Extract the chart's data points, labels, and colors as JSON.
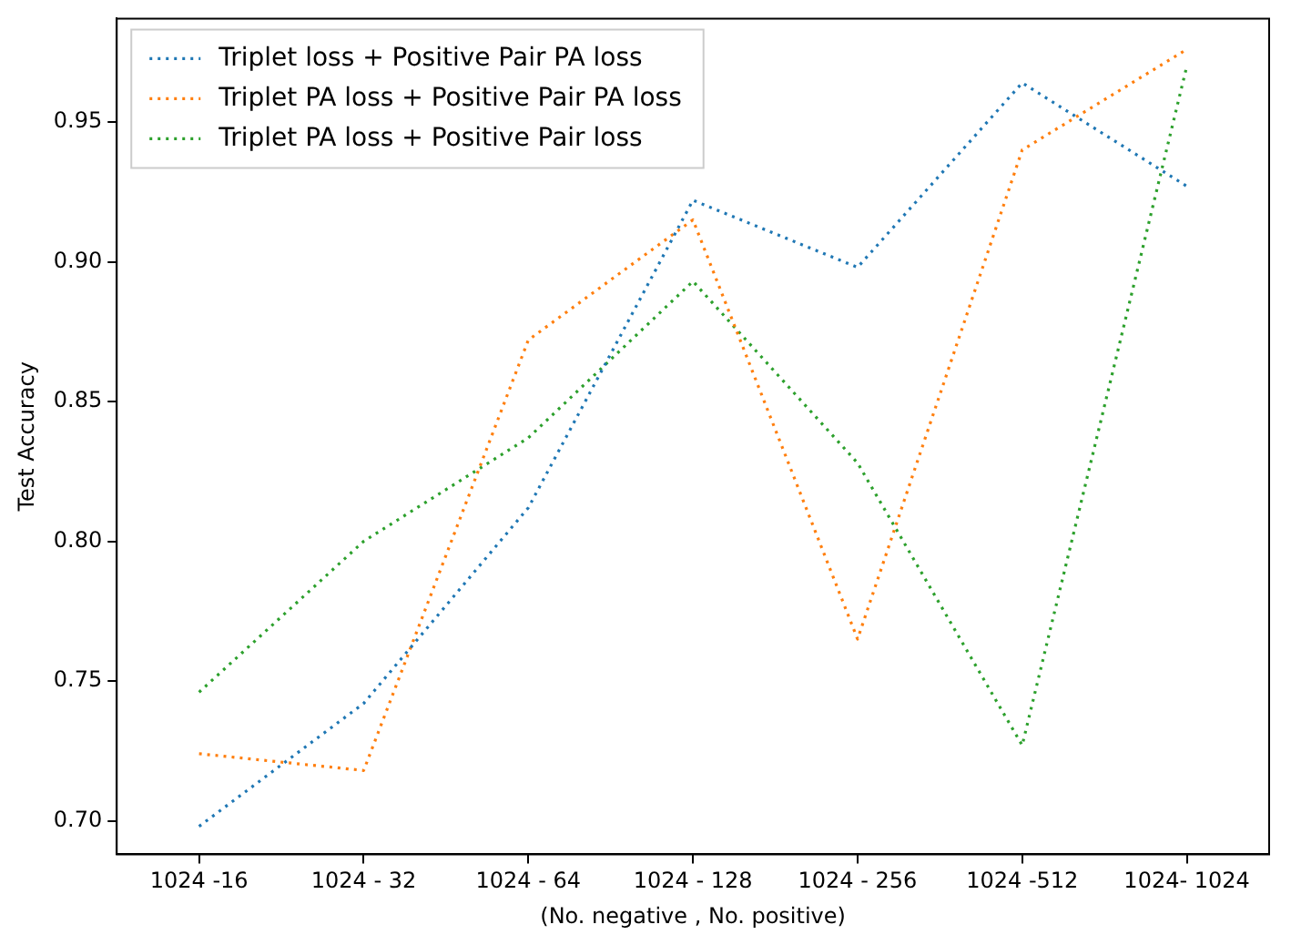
{
  "chart_data": {
    "type": "line",
    "xlabel": "(No. negative , No. positive)",
    "ylabel": "Test Accuracy",
    "categories": [
      "1024 -16",
      "1024 - 32",
      "1024 - 64",
      "1024 - 128",
      "1024 - 256",
      "1024 -512",
      "1024- 1024"
    ],
    "series": [
      {
        "name": "Triplet loss + Positive Pair PA loss",
        "color": "#1f77b4",
        "values": [
          0.698,
          0.742,
          0.812,
          0.922,
          0.898,
          0.964,
          0.927
        ]
      },
      {
        "name": "Triplet PA loss + Positive Pair PA loss",
        "color": "#ff7f0e",
        "values": [
          0.724,
          0.718,
          0.872,
          0.915,
          0.765,
          0.94,
          0.976
        ]
      },
      {
        "name": "Triplet PA loss + Positive Pair loss",
        "color": "#2ca02c",
        "values": [
          0.746,
          0.8,
          0.837,
          0.893,
          0.828,
          0.727,
          0.97
        ]
      }
    ],
    "ylim": [
      0.688,
      0.987
    ],
    "yticks": [
      {
        "value": 0.7,
        "label": "0.70"
      },
      0.75,
      {
        "value": 0.8,
        "label": "0.80"
      },
      0.85,
      {
        "value": 0.9,
        "label": "0.90"
      },
      0.95
    ],
    "grid": false,
    "legend": "top left",
    "marker": "none",
    "line_style": "dotted"
  }
}
